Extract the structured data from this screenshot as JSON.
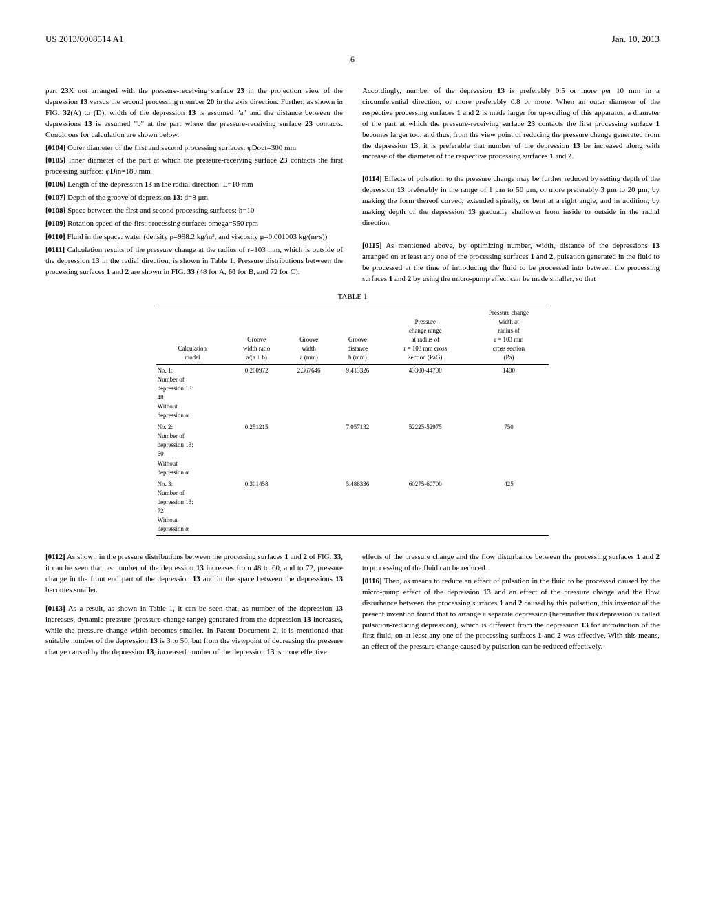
{
  "header": {
    "doc_id": "US 2013/0008514 A1",
    "doc_date": "Jan. 10, 2013",
    "page_num": "6"
  },
  "top_left": {
    "p0a": "part ",
    "p0b": "23",
    "p0c": "X not arranged with the pressure-receiving surface ",
    "p0d": "23",
    "p0e": " in the projection view of the depression ",
    "p0f": "13",
    "p0g": " versus the second processing member ",
    "p0h": "20",
    "p0i": " in the axis direction. Further, as shown in FIG. ",
    "p0j": "32",
    "p0k": "(A) to (D), width of the depression ",
    "p0l": "13",
    "p0m": " is assumed \"a\" and the distance between the depressions ",
    "p0n": "13",
    "p0o": " is assumed \"b\" at the part where the pressure-receiving surface ",
    "p0p": "23",
    "p0q": " contacts. Conditions for calculation are shown below.",
    "n104": "[0104]",
    "p104": " Outer diameter of the first and second processing surfaces: φDout=300 mm",
    "n105": "[0105]",
    "p105a": " Inner diameter of the part at which the pressure-receiving surface ",
    "p105b": "23",
    "p105c": " contacts the first processing surface: φDin=180 mm",
    "n106": "[0106]",
    "p106a": " Length of the depression ",
    "p106b": "13",
    "p106c": " in the radial direction: L=10 mm",
    "n107": "[0107]",
    "p107a": " Depth of the groove of depression ",
    "p107b": "13",
    "p107c": ": d=8 μm",
    "n108": "[0108]",
    "p108": " Space between the first and second processing surfaces: h=10",
    "n109": "[0109]",
    "p109": " Rotation speed of the first processing surface: omega=550 rpm",
    "n110": "[0110]",
    "p110": " Fluid in the space: water (density ρ=998.2 kg/m³, and viscosity μ=0.001003 kg/(m·s))",
    "n111": "[0111]",
    "p111a": " Calculation results of the pressure change at the radius of r=103 mm, which is outside of the depression ",
    "p111b": "13",
    "p111c": " in the radial direction, is shown in Table 1. Pressure distributions between the processing surfaces ",
    "p111d": "1",
    "p111e": " and ",
    "p111f": "2",
    "p111g": " are shown in FIG. ",
    "p111h": "33",
    "p111i": " (48 for A, ",
    "p111j": "60",
    "p111k": " for B, and 72 for C)."
  },
  "top_right": {
    "p_ra": "Accordingly, number of the depression ",
    "p_rb": "13",
    "p_rc": " is preferably 0.5 or more per 10 mm in a circumferential direction, or more preferably 0.8 or more. When an outer diameter of the respective processing surfaces ",
    "p_rd": "1",
    "p_re": " and ",
    "p_rf": "2",
    "p_rg": " is made larger for up-scaling of this apparatus, a diameter of the part at which the pressure-receiving surface ",
    "p_rh": "23",
    "p_ri": " contacts the first processing surface ",
    "p_rj": "1",
    "p_rk": " becomes larger too; and thus, from the view point of reducing the pressure change generated from the depression ",
    "p_rl": "13",
    "p_rm": ", it is preferable that number of the depression ",
    "p_rn": "13",
    "p_ro": " be increased along with increase of the diameter of the respective processing surfaces ",
    "p_rp": "1",
    "p_rq": " and ",
    "p_rr": "2",
    "p_rs": ".",
    "n114": "[0114]",
    "p114a": " Effects of pulsation to the pressure change may be further reduced by setting depth of the depression ",
    "p114b": "13",
    "p114c": " preferably in the range of 1 μm to 50 μm, or more preferably 3 μm to 20 μm, by making the form thereof curved, extended spirally, or bent at a right angle, and in addition, by making depth of the depression ",
    "p114d": "13",
    "p114e": " gradually shallower from inside to outside in the radial direction.",
    "n115": "[0115]",
    "p115a": " As mentioned above, by optimizing number, width, distance of the depressions ",
    "p115b": "13",
    "p115c": " arranged on at least any one of the processing surfaces ",
    "p115d": "1",
    "p115e": " and ",
    "p115f": "2",
    "p115g": ", pulsation generated in the fluid to be processed at the time of introducing the fluid to be processed into between the processing surfaces ",
    "p115h": "1",
    "p115i": " and ",
    "p115j": "2",
    "p115k": " by using the micro-pump effect can be made smaller, so that"
  },
  "table": {
    "title": "TABLE 1",
    "headers": {
      "c1": "Calculation\nmodel",
      "c2": "Groove\nwidth ratio\na/(a + b)",
      "c3": "Groove\nwidth\na (mm)",
      "c4": "Groove\ndistance\nb (mm)",
      "c5": "Pressure\nchange range\nat radius of\nr = 103 mm cross\nsection (PaG)",
      "c6": "Pressure change\nwidth at\nradius of\nr = 103 mm\ncross section\n(Pa)"
    },
    "rows": [
      {
        "model_a": "No. 1:",
        "model_b": "Number of",
        "model_c": "depression 13:",
        "model_d": "48",
        "model_e": "Without",
        "model_f": "depression α",
        "ratio": "0.200972",
        "width": "2.367646",
        "distance": "9.413326",
        "range": "43300-44700",
        "change": "1400"
      },
      {
        "model_a": "No. 2:",
        "model_b": "Number of",
        "model_c": "depression 13:",
        "model_d": "60",
        "model_e": "Without",
        "model_f": "depression α",
        "ratio": "0.251215",
        "width": "",
        "distance": "7.057132",
        "range": "52225-52975",
        "change": "750"
      },
      {
        "model_a": "No. 3:",
        "model_b": "Number of",
        "model_c": "depression 13:",
        "model_d": "72",
        "model_e": "Without",
        "model_f": "depression α",
        "ratio": "0.301458",
        "width": "",
        "distance": "5.486336",
        "range": "60275-60700",
        "change": "425"
      }
    ]
  },
  "bottom_left": {
    "n112": "[0112]",
    "p112a": " As shown in the pressure distributions between the processing surfaces ",
    "p112b": "1",
    "p112c": " and ",
    "p112d": "2",
    "p112e": " of FIG. ",
    "p112f": "33",
    "p112g": ", it can be seen that, as number of the depression ",
    "p112h": "13",
    "p112i": " increases from 48 to 60, and to 72, pressure change in the front end part of the depression ",
    "p112j": "13",
    "p112k": " and in the space between the depressions ",
    "p112l": "13",
    "p112m": " becomes smaller.",
    "n113": "[0113]",
    "p113a": " As a result, as shown in Table 1, it can be seen that, as number of the depression ",
    "p113b": "13",
    "p113c": " increases, dynamic pressure (pressure change range) generated from the depression ",
    "p113d": "13",
    "p113e": " increases, while the pressure change width becomes smaller. In Patent Document 2, it is mentioned that suitable number of the depression ",
    "p113f": "13",
    "p113g": " is 3 to 50; but from the viewpoint of decreasing the pressure change caused by the depression ",
    "p113h": "13",
    "p113i": ", increased number of the depression ",
    "p113j": "13",
    "p113k": " is more effective."
  },
  "bottom_right": {
    "p_eff_a": "effects of the pressure change and the flow disturbance between the processing surfaces ",
    "p_eff_b": "1",
    "p_eff_c": " and ",
    "p_eff_d": "2",
    "p_eff_e": " to processing of the fluid can be reduced.",
    "n116": "[0116]",
    "p116a": " Then, as means to reduce an effect of pulsation in the fluid to be processed caused by the micro-pump effect of the depression ",
    "p116b": "13",
    "p116c": " and an effect of the pressure change and the flow disturbance between the processing surfaces ",
    "p116d": "1",
    "p116e": " and ",
    "p116f": "2",
    "p116g": " caused by this pulsation, this inventor of the present invention found that to arrange a separate depression (hereinafter this depression is called pulsation-reducing depression), which is different from the depression ",
    "p116h": "13",
    "p116i": " for introduction of the first fluid, on at least any one of the processing surfaces ",
    "p116j": "1",
    "p116k": " and ",
    "p116l": "2",
    "p116m": " was effective. With this means, an effect of the pressure change caused by pulsation can be reduced effectively."
  }
}
